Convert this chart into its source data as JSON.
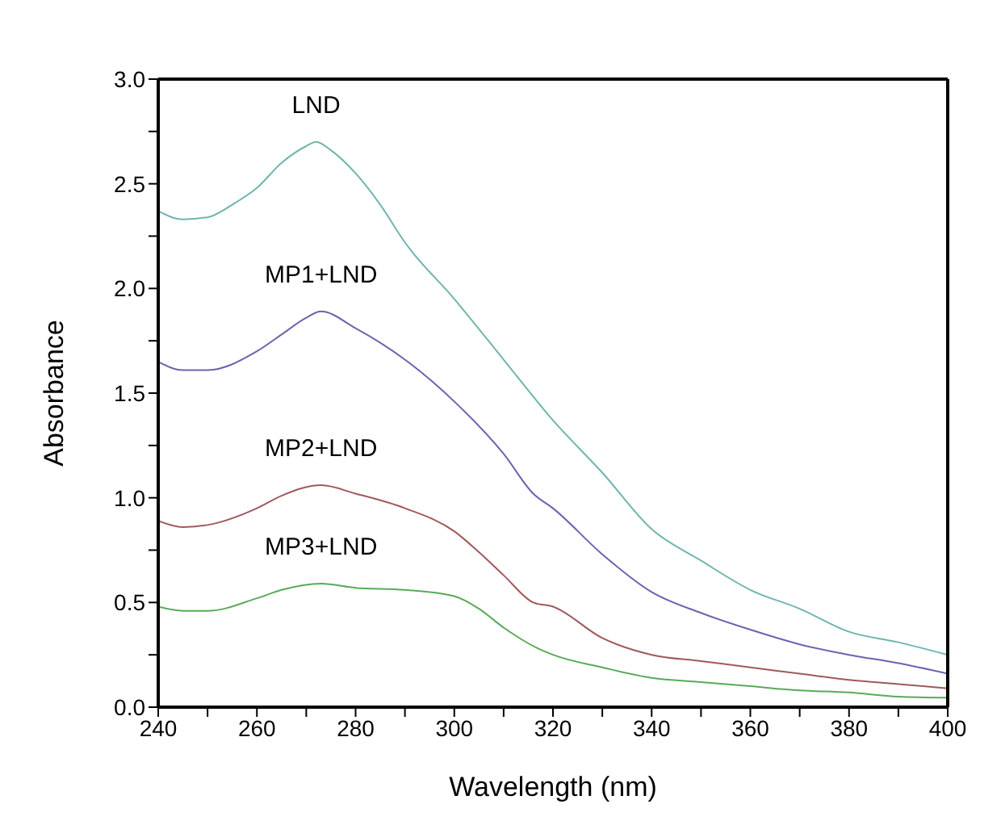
{
  "chart_data": {
    "type": "line",
    "xlabel": "Wavelength (nm)",
    "ylabel": "Absorbance",
    "xlim": [
      240,
      400
    ],
    "ylim": [
      0,
      3.0
    ],
    "xticks": [
      240,
      {
        "value": 250,
        "label": null
      },
      260,
      {
        "value": 270,
        "label": null
      },
      280,
      {
        "value": 290,
        "label": null
      },
      300,
      {
        "value": 310,
        "label": null
      },
      320,
      {
        "value": 330,
        "label": null
      },
      340,
      {
        "value": 350,
        "label": null
      },
      360,
      {
        "value": 370,
        "label": null
      },
      380,
      {
        "value": 390,
        "label": null
      },
      400
    ],
    "yticks": [
      {
        "value": 0,
        "label": "0.0"
      },
      {
        "value": 0.25,
        "label": null
      },
      0.5,
      {
        "value": 0.75,
        "label": null
      },
      {
        "value": 1,
        "label": "1.0"
      },
      {
        "value": 1.25,
        "label": null
      },
      1.5,
      {
        "value": 1.75,
        "label": null
      },
      {
        "value": 2,
        "label": "2.0"
      },
      {
        "value": 2.25,
        "label": null
      },
      2.5,
      {
        "value": 2.75,
        "label": null
      },
      {
        "value": 3,
        "label": "3.0"
      }
    ],
    "marker": "none",
    "line_style": "solid",
    "series": [
      {
        "name": "LND",
        "color": "#6fb5ae",
        "x": [
          240,
          245,
          250,
          255,
          260,
          265,
          270,
          272,
          275,
          280,
          285,
          290,
          300,
          310,
          320,
          330,
          340,
          350,
          360,
          370,
          380,
          390,
          400
        ],
        "values": [
          2.37,
          2.33,
          2.34,
          2.4,
          2.48,
          2.6,
          2.68,
          2.7,
          2.66,
          2.55,
          2.4,
          2.22,
          1.95,
          1.66,
          1.37,
          1.12,
          0.85,
          0.7,
          0.56,
          0.47,
          0.36,
          0.31,
          0.25
        ]
      },
      {
        "name": "MP1+LND",
        "color": "#6a64b0",
        "x": [
          240,
          245,
          250,
          260,
          265,
          270,
          273,
          280,
          290,
          300,
          310,
          316,
          320,
          330,
          340,
          350,
          360,
          370,
          380,
          390,
          400
        ],
        "values": [
          1.65,
          1.61,
          1.61,
          1.7,
          1.78,
          1.86,
          1.89,
          1.81,
          1.66,
          1.46,
          1.21,
          1.02,
          0.95,
          0.73,
          0.55,
          0.45,
          0.37,
          0.3,
          0.25,
          0.21,
          0.16
        ]
      },
      {
        "name": "MP2+LND",
        "color": "#a0595c",
        "x": [
          240,
          245,
          250,
          260,
          265,
          273,
          280,
          290,
          300,
          305,
          310,
          316,
          320,
          330,
          340,
          350,
          360,
          370,
          380,
          390,
          400
        ],
        "values": [
          0.89,
          0.86,
          0.87,
          0.95,
          1.01,
          1.06,
          1.02,
          0.95,
          0.84,
          0.74,
          0.63,
          0.5,
          0.48,
          0.33,
          0.25,
          0.22,
          0.19,
          0.16,
          0.13,
          0.11,
          0.09
        ]
      },
      {
        "name": "MP3+LND",
        "color": "#5aaa5a",
        "x": [
          240,
          245,
          250,
          260,
          265,
          273,
          280,
          290,
          300,
          305,
          310,
          317,
          320,
          330,
          340,
          350,
          360,
          370,
          380,
          390,
          400
        ],
        "values": [
          0.48,
          0.46,
          0.46,
          0.52,
          0.56,
          0.59,
          0.57,
          0.56,
          0.53,
          0.47,
          0.38,
          0.28,
          0.25,
          0.19,
          0.14,
          0.12,
          0.1,
          0.08,
          0.07,
          0.05,
          0.045
        ]
      }
    ]
  }
}
